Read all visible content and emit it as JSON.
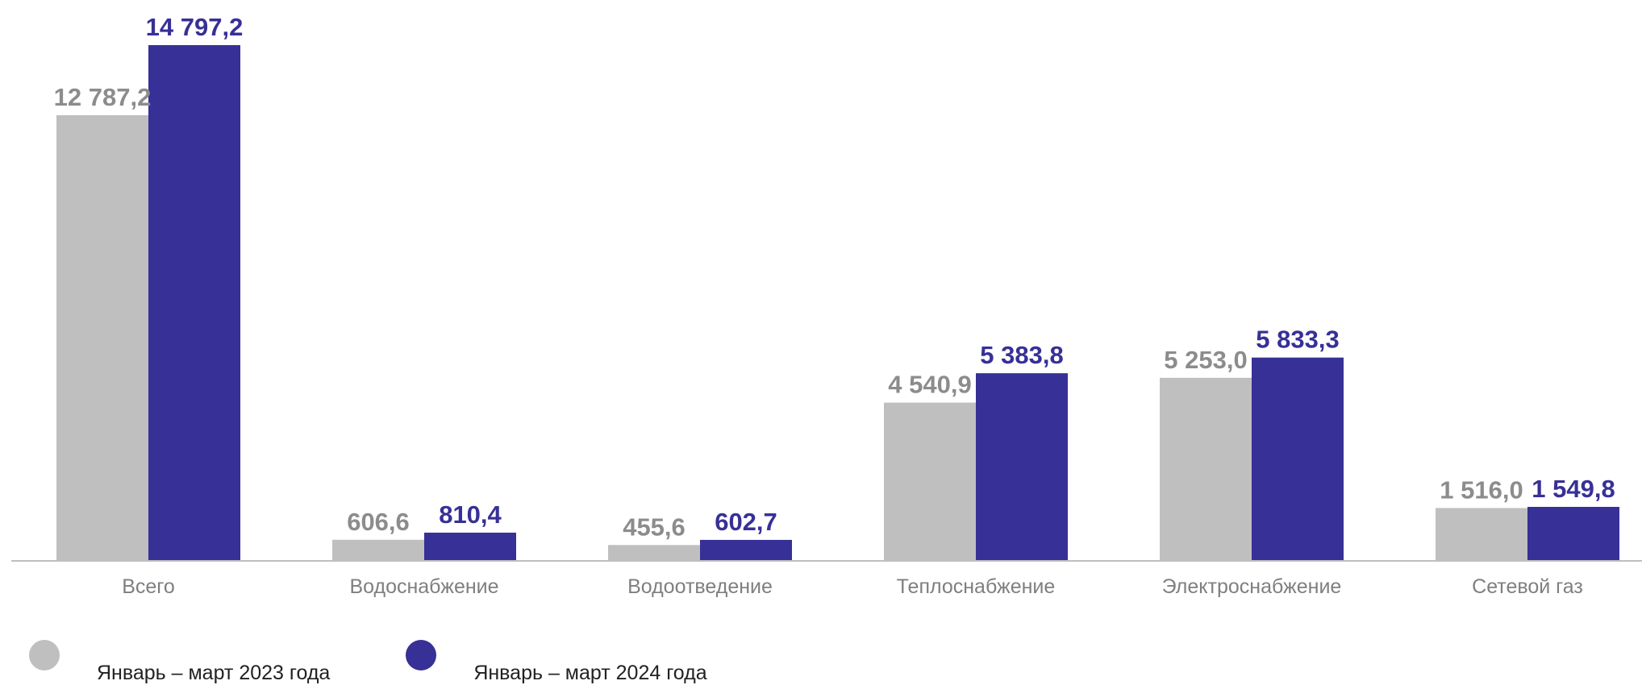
{
  "chart_data": {
    "type": "bar",
    "categories": [
      "Всего",
      "Водоснабжение",
      "Водоотведение",
      "Теплоснабжение",
      "Электроснабжение",
      "Сетевой газ"
    ],
    "series": [
      {
        "name": "Январь – март 2023 года",
        "values": [
          12787.2,
          606.6,
          455.6,
          4540.9,
          5253.0,
          1516.0
        ],
        "labels": [
          "12 787,2",
          "606,6",
          "455,6",
          "4 540,9",
          "5 253,0",
          "1 516,0"
        ],
        "color": "#bfbfbf",
        "label_color": "#8c8c8c"
      },
      {
        "name": "Январь – март 2024 года",
        "values": [
          14797.2,
          810.4,
          602.7,
          5383.8,
          5833.3,
          1549.8
        ],
        "labels": [
          "14 797,2",
          "810,4",
          "602,7",
          "5 383,8",
          "5 833,3",
          "1 549,8"
        ],
        "color": "#373096",
        "label_color": "#373096"
      }
    ],
    "title": "",
    "xlabel": "",
    "ylabel": "",
    "ylim": [
      0,
      14797.2
    ],
    "grid": false,
    "legend_position": "bottom-left",
    "axis_color": "#bfbfbf"
  }
}
